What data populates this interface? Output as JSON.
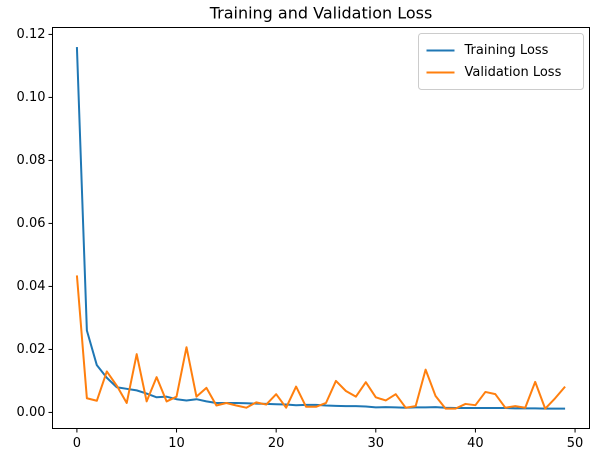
{
  "chart_data": {
    "type": "line",
    "title": "Training and Validation Loss",
    "x": [
      0,
      1,
      2,
      3,
      4,
      5,
      6,
      7,
      8,
      9,
      10,
      11,
      12,
      13,
      14,
      15,
      16,
      17,
      18,
      19,
      20,
      21,
      22,
      23,
      24,
      25,
      26,
      27,
      28,
      29,
      30,
      31,
      32,
      33,
      34,
      35,
      36,
      37,
      38,
      39,
      40,
      41,
      42,
      43,
      44,
      45,
      46,
      47,
      48,
      49
    ],
    "series": [
      {
        "name": "Training Loss",
        "color": "#1f77b4",
        "values": [
          0.116,
          0.026,
          0.015,
          0.011,
          0.008,
          0.0075,
          0.007,
          0.006,
          0.0048,
          0.005,
          0.0042,
          0.0038,
          0.0042,
          0.0035,
          0.003,
          0.003,
          0.003,
          0.0029,
          0.0028,
          0.0027,
          0.0026,
          0.0025,
          0.0023,
          0.0024,
          0.0024,
          0.0022,
          0.0021,
          0.002,
          0.002,
          0.0019,
          0.0016,
          0.0017,
          0.0016,
          0.0015,
          0.0016,
          0.0016,
          0.0017,
          0.0015,
          0.0014,
          0.0014,
          0.0014,
          0.0014,
          0.0014,
          0.0014,
          0.0013,
          0.0013,
          0.0013,
          0.0012,
          0.0012,
          0.0012
        ]
      },
      {
        "name": "Validation Loss",
        "color": "#ff7f0e",
        "values": [
          0.0435,
          0.0045,
          0.0037,
          0.013,
          0.0085,
          0.003,
          0.0185,
          0.0035,
          0.0112,
          0.0035,
          0.005,
          0.0207,
          0.005,
          0.0078,
          0.0022,
          0.003,
          0.0022,
          0.0015,
          0.0032,
          0.0025,
          0.0058,
          0.0015,
          0.0082,
          0.0018,
          0.0018,
          0.003,
          0.01,
          0.0068,
          0.005,
          0.0096,
          0.0048,
          0.0038,
          0.0058,
          0.0015,
          0.002,
          0.0136,
          0.0052,
          0.0012,
          0.0012,
          0.0027,
          0.0023,
          0.0065,
          0.0058,
          0.0015,
          0.002,
          0.0015,
          0.0097,
          0.0012,
          0.0045,
          0.0082
        ]
      }
    ],
    "xlim": [
      -2.45,
      51.45
    ],
    "xticks": [
      0,
      10,
      20,
      30,
      40,
      50
    ],
    "ylim": [
      -0.0051,
      0.1222
    ],
    "yticks": [
      {
        "value": 0,
        "label": "0.00"
      },
      {
        "value": 0.02,
        "label": "0.02"
      },
      {
        "value": 0.04,
        "label": "0.04"
      },
      {
        "value": 0.06,
        "label": "0.06"
      },
      {
        "value": 0.08,
        "label": "0.08"
      },
      {
        "value": 0.1,
        "label": "0.10"
      },
      {
        "value": 0.12,
        "label": "0.12"
      }
    ],
    "legend": "upper right"
  }
}
